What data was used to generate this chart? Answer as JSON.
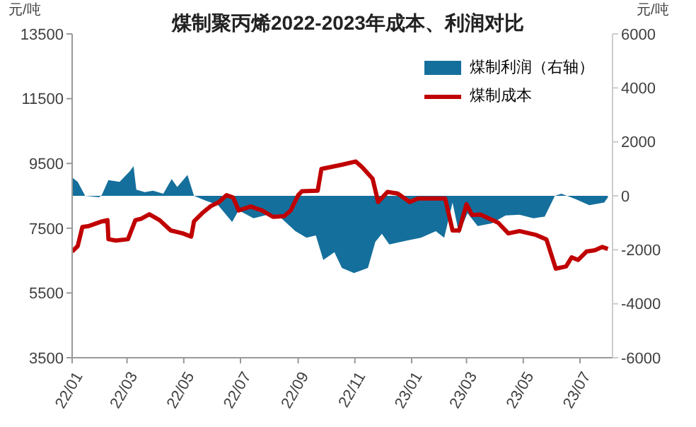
{
  "chart_data": {
    "type": "line",
    "title": "煤制聚丙烯2022-2023年成本、利润对比",
    "ylabel": "元/吨",
    "y2label": "元/吨",
    "xlim": [
      "2022-01-01",
      "2023-08-05"
    ],
    "xticks": [
      {
        "value": "2022-01-01",
        "label": "22/01"
      },
      {
        "value": "2022-03-01",
        "label": "22/03"
      },
      {
        "value": "2022-05-01",
        "label": "22/05"
      },
      {
        "value": "2022-07-01",
        "label": "22/07"
      },
      {
        "value": "2022-09-01",
        "label": "22/09"
      },
      {
        "value": "2022-11-01",
        "label": "22/11"
      },
      {
        "value": "2023-01-01",
        "label": "23/01"
      },
      {
        "value": "2023-03-01",
        "label": "23/03"
      },
      {
        "value": "2023-05-01",
        "label": "23/05"
      },
      {
        "value": "2023-07-01",
        "label": "23/07"
      }
    ],
    "ylim": [
      3500,
      13500
    ],
    "yticks": [
      3500,
      5500,
      7500,
      9500,
      11500,
      13500
    ],
    "y2lim": [
      -6000,
      6000
    ],
    "y2ticks": [
      -6000,
      -4000,
      -2000,
      0,
      2000,
      4000,
      6000
    ],
    "legend": "top right",
    "series": [
      {
        "name": "煤制利润（右轴）",
        "type": "area",
        "axis": "y2",
        "color": "#156f9c",
        "x": [
          "2022-01-01",
          "2022-01-07",
          "2022-01-15",
          "2022-01-30",
          "2022-02-02",
          "2022-02-09",
          "2022-02-21",
          "2022-03-04",
          "2022-03-08",
          "2022-03-11",
          "2022-03-20",
          "2022-03-29",
          "2022-04-09",
          "2022-04-18",
          "2022-04-24",
          "2022-05-05",
          "2022-05-12",
          "2022-05-23",
          "2022-06-07",
          "2022-06-22",
          "2022-06-29",
          "2022-07-15",
          "2022-07-30",
          "2022-08-14",
          "2022-08-29",
          "2022-09-10",
          "2022-09-20",
          "2022-09-28",
          "2022-10-10",
          "2022-10-18",
          "2022-10-31",
          "2022-11-15",
          "2022-11-23",
          "2022-11-30",
          "2022-12-08",
          "2022-12-27",
          "2023-01-11",
          "2023-01-27",
          "2023-02-05",
          "2023-02-14",
          "2023-02-21",
          "2023-03-02",
          "2023-03-13",
          "2023-03-28",
          "2023-04-12",
          "2023-04-27",
          "2023-05-12",
          "2023-05-24",
          "2023-06-04",
          "2023-06-11",
          "2023-06-26",
          "2023-07-11",
          "2023-07-27",
          "2023-07-31"
        ],
        "values": [
          680,
          520,
          0,
          -50,
          40,
          580,
          520,
          910,
          1100,
          230,
          140,
          190,
          80,
          620,
          330,
          770,
          0,
          -160,
          -350,
          -970,
          -540,
          -830,
          -700,
          -830,
          -1310,
          -1550,
          -1470,
          -2380,
          -2090,
          -2670,
          -2860,
          -2670,
          -1700,
          -1410,
          -1800,
          -1660,
          -1550,
          -1310,
          -1550,
          -250,
          -1410,
          -640,
          -1120,
          -1020,
          -730,
          -700,
          -830,
          -770,
          0,
          80,
          -120,
          -350,
          -250,
          -60
        ]
      },
      {
        "name": "煤制成本",
        "color": "#c00000",
        "x": [
          "2022-01-01",
          "2022-01-07",
          "2022-01-12",
          "2022-01-18",
          "2022-01-25",
          "2022-02-02",
          "2022-02-08",
          "2022-02-09",
          "2022-02-17",
          "2022-03-02",
          "2022-03-10",
          "2022-03-16",
          "2022-03-25",
          "2022-04-05",
          "2022-04-17",
          "2022-04-30",
          "2022-05-09",
          "2022-05-12",
          "2022-05-21",
          "2022-05-30",
          "2022-06-08",
          "2022-06-16",
          "2022-06-23",
          "2022-06-29",
          "2022-07-12",
          "2022-07-24",
          "2022-08-05",
          "2022-08-17",
          "2022-08-24",
          "2022-09-01",
          "2022-09-05",
          "2022-09-22",
          "2022-09-26",
          "2022-10-18",
          "2022-11-02",
          "2022-11-09",
          "2022-11-20",
          "2022-11-26",
          "2022-12-06",
          "2022-12-17",
          "2022-12-30",
          "2023-01-08",
          "2023-02-06",
          "2023-02-14",
          "2023-02-21",
          "2023-03-01",
          "2023-03-07",
          "2023-03-16",
          "2023-04-04",
          "2023-04-15",
          "2023-04-27",
          "2023-05-15",
          "2023-05-26",
          "2023-06-05",
          "2023-06-16",
          "2023-06-22",
          "2023-06-29",
          "2023-07-08",
          "2023-07-17",
          "2023-07-25",
          "2023-07-31"
        ],
        "values": [
          6780,
          6950,
          7540,
          7560,
          7630,
          7710,
          7750,
          7160,
          7120,
          7160,
          7750,
          7790,
          7930,
          7750,
          7430,
          7340,
          7240,
          7710,
          7970,
          8180,
          8310,
          8520,
          8450,
          8050,
          8170,
          8050,
          7850,
          7870,
          8050,
          8520,
          8640,
          8660,
          9330,
          9460,
          9560,
          9380,
          9030,
          8310,
          8620,
          8570,
          8310,
          8420,
          8420,
          7430,
          7430,
          8240,
          7910,
          7920,
          7670,
          7340,
          7410,
          7290,
          7150,
          6250,
          6320,
          6600,
          6520,
          6780,
          6820,
          6920,
          6860
        ]
      }
    ]
  }
}
